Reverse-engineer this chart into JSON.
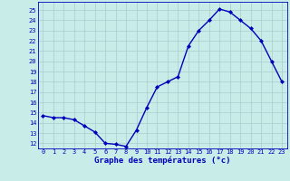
{
  "hours": [
    0,
    1,
    2,
    3,
    4,
    5,
    6,
    7,
    8,
    9,
    10,
    11,
    12,
    13,
    14,
    15,
    16,
    17,
    18,
    19,
    20,
    21,
    22,
    23
  ],
  "temps": [
    14.7,
    14.5,
    14.5,
    14.3,
    13.7,
    13.1,
    12.0,
    11.9,
    11.7,
    13.3,
    15.5,
    17.5,
    18.0,
    18.5,
    21.5,
    23.0,
    24.0,
    25.1,
    24.8,
    24.0,
    23.2,
    22.0,
    20.0,
    18.0
  ],
  "xlabel": "Graphe des températures (°c)",
  "ylim": [
    11.5,
    25.8
  ],
  "xlim": [
    -0.5,
    23.5
  ],
  "yticks": [
    12,
    13,
    14,
    15,
    16,
    17,
    18,
    19,
    20,
    21,
    22,
    23,
    24,
    25
  ],
  "xtick_labels": [
    "0",
    "1",
    "2",
    "3",
    "4",
    "5",
    "6",
    "7",
    "8",
    "9",
    "10",
    "11",
    "12",
    "13",
    "14",
    "15",
    "16",
    "17",
    "18",
    "19",
    "20",
    "21",
    "22",
    "23"
  ],
  "line_color": "#0000bb",
  "bg_color": "#c8ece8",
  "grid_color": "#aacccc",
  "label_color": "#0000bb",
  "tick_color": "#0000bb",
  "marker": "D",
  "marker_size": 2.0,
  "line_width": 1.0,
  "tick_fontsize": 5.0,
  "xlabel_fontsize": 6.5
}
